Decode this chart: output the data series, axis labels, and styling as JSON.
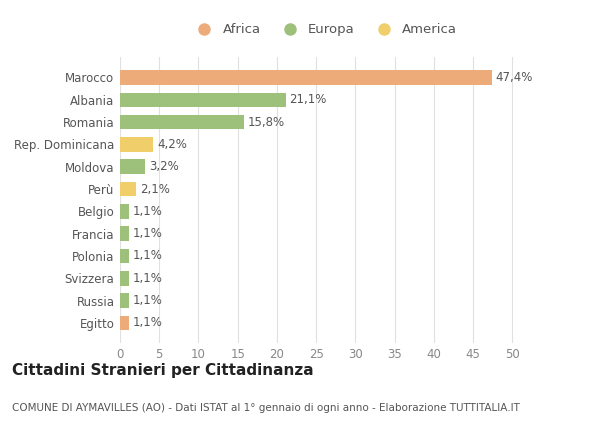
{
  "categories": [
    "Egitto",
    "Russia",
    "Svizzera",
    "Polonia",
    "Francia",
    "Belgio",
    "Perù",
    "Moldova",
    "Rep. Dominicana",
    "Romania",
    "Albania",
    "Marocco"
  ],
  "values": [
    1.1,
    1.1,
    1.1,
    1.1,
    1.1,
    1.1,
    2.1,
    3.2,
    4.2,
    15.8,
    21.1,
    47.4
  ],
  "colors": [
    "#EDAB7A",
    "#9DC07A",
    "#9DC07A",
    "#9DC07A",
    "#9DC07A",
    "#9DC07A",
    "#F0CE6A",
    "#9DC07A",
    "#F0CE6A",
    "#9DC07A",
    "#9DC07A",
    "#EDAB7A"
  ],
  "labels": [
    "1,1%",
    "1,1%",
    "1,1%",
    "1,1%",
    "1,1%",
    "1,1%",
    "2,1%",
    "3,2%",
    "4,2%",
    "15,8%",
    "21,1%",
    "47,4%"
  ],
  "legend_labels": [
    "Africa",
    "Europa",
    "America"
  ],
  "legend_colors": [
    "#EDAB7A",
    "#9DC07A",
    "#F0CE6A"
  ],
  "title": "Cittadini Stranieri per Cittadinanza",
  "subtitle": "COMUNE DI AYMAVILLES (AO) - Dati ISTAT al 1° gennaio di ogni anno - Elaborazione TUTTITALIA.IT",
  "xlim": [
    0,
    52
  ],
  "xticks": [
    0,
    5,
    10,
    15,
    20,
    25,
    30,
    35,
    40,
    45,
    50
  ],
  "bg_color": "#FFFFFF",
  "grid_color": "#E0E0E0",
  "bar_height": 0.65,
  "title_fontsize": 11,
  "subtitle_fontsize": 7.5,
  "tick_fontsize": 8.5,
  "label_fontsize": 8.5,
  "legend_fontsize": 9.5
}
